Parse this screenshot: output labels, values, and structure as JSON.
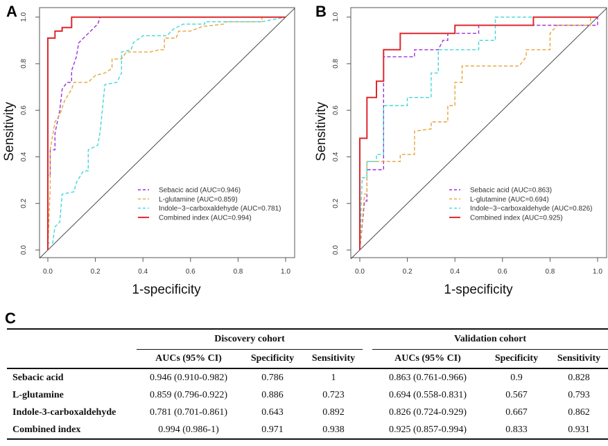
{
  "panels": [
    {
      "letter": "A",
      "xlabel": "1-specificity",
      "ylabel": "Sensitivity",
      "legend": [
        "Sebacic acid (AUC=0.946)",
        "L-glutamine (AUC=0.859)",
        "Indole−3−carboxaldehyde (AUC=0.781)",
        "Combined index (AUC=0.994)"
      ]
    },
    {
      "letter": "B",
      "xlabel": "1-specificity",
      "ylabel": "Sensitivity",
      "legend": [
        "Sebacic acid (AUC=0.863)",
        "L-glutamine (AUC=0.694)",
        "Indole−3−carboxaldehyde (AUC=0.826)",
        "Combined index (AUC=0.925)"
      ]
    }
  ],
  "chart_data": [
    {
      "type": "line",
      "panel": "A",
      "xlabel": "1-specificity",
      "ylabel": "Sensitivity",
      "xlim": [
        0,
        1
      ],
      "ylim": [
        0,
        1
      ],
      "xticks": [
        "0.0",
        "0.2",
        "0.4",
        "0.6",
        "0.8",
        "1.0"
      ],
      "yticks": [
        "0.0",
        "0.2",
        "0.4",
        "0.6",
        "0.8",
        "1.0"
      ],
      "legend_position": "bottom-right",
      "reference_line": "diagonal",
      "series": [
        {
          "name": "Sebacic acid (AUC=0.946)",
          "color": "#9b30d9",
          "dash": true,
          "points": [
            [
              0,
              0
            ],
            [
              0,
              0.32
            ],
            [
              0.01,
              0.32
            ],
            [
              0.01,
              0.43
            ],
            [
              0.03,
              0.43
            ],
            [
              0.03,
              0.5
            ],
            [
              0.04,
              0.55
            ],
            [
              0.05,
              0.6
            ],
            [
              0.06,
              0.69
            ],
            [
              0.08,
              0.72
            ],
            [
              0.1,
              0.72
            ],
            [
              0.1,
              0.77
            ],
            [
              0.12,
              0.83
            ],
            [
              0.13,
              0.89
            ],
            [
              0.16,
              0.92
            ],
            [
              0.19,
              0.95
            ],
            [
              0.21,
              0.97
            ],
            [
              0.22,
              1
            ],
            [
              1,
              1
            ]
          ]
        },
        {
          "name": "L-glutamine (AUC=0.859)",
          "color": "#e8a33a",
          "dash": true,
          "points": [
            [
              0,
              0
            ],
            [
              0.01,
              0.27
            ],
            [
              0.01,
              0.43
            ],
            [
              0.02,
              0.49
            ],
            [
              0.03,
              0.55
            ],
            [
              0.05,
              0.58
            ],
            [
              0.07,
              0.64
            ],
            [
              0.1,
              0.69
            ],
            [
              0.11,
              0.72
            ],
            [
              0.17,
              0.72
            ],
            [
              0.2,
              0.75
            ],
            [
              0.24,
              0.76
            ],
            [
              0.27,
              0.78
            ],
            [
              0.27,
              0.82
            ],
            [
              0.31,
              0.82
            ],
            [
              0.33,
              0.85
            ],
            [
              0.43,
              0.85
            ],
            [
              0.47,
              0.86
            ],
            [
              0.49,
              0.86
            ],
            [
              0.49,
              0.91
            ],
            [
              0.54,
              0.91
            ],
            [
              0.55,
              0.94
            ],
            [
              0.6,
              0.94
            ],
            [
              0.65,
              0.96
            ],
            [
              0.74,
              0.97
            ],
            [
              0.75,
              0.98
            ],
            [
              0.9,
              0.98
            ],
            [
              0.9,
              1
            ],
            [
              1,
              1
            ]
          ]
        },
        {
          "name": "Indole-3-carboxaldehyde (AUC=0.781)",
          "color": "#3fd8d8",
          "dash": true,
          "points": [
            [
              0,
              0
            ],
            [
              0,
              0.03
            ],
            [
              0.02,
              0.03
            ],
            [
              0.03,
              0.1
            ],
            [
              0.05,
              0.12
            ],
            [
              0.06,
              0.24
            ],
            [
              0.11,
              0.25
            ],
            [
              0.12,
              0.29
            ],
            [
              0.15,
              0.34
            ],
            [
              0.17,
              0.34
            ],
            [
              0.17,
              0.43
            ],
            [
              0.21,
              0.45
            ],
            [
              0.22,
              0.51
            ],
            [
              0.23,
              0.61
            ],
            [
              0.24,
              0.71
            ],
            [
              0.29,
              0.72
            ],
            [
              0.31,
              0.76
            ],
            [
              0.31,
              0.85
            ],
            [
              0.35,
              0.86
            ],
            [
              0.36,
              0.89
            ],
            [
              0.4,
              0.92
            ],
            [
              0.5,
              0.92
            ],
            [
              0.53,
              0.95
            ],
            [
              0.57,
              0.97
            ],
            [
              0.66,
              0.97
            ],
            [
              0.66,
              0.98
            ],
            [
              0.9,
              0.98
            ],
            [
              1,
              1
            ]
          ]
        },
        {
          "name": "Combined index (AUC=0.994)",
          "color": "#e0262c",
          "dash": false,
          "points": [
            [
              0,
              0
            ],
            [
              0,
              0.91
            ],
            [
              0.03,
              0.91
            ],
            [
              0.03,
              0.94
            ],
            [
              0.06,
              0.94
            ],
            [
              0.06,
              0.955
            ],
            [
              0.1,
              0.955
            ],
            [
              0.1,
              1
            ],
            [
              1,
              1
            ]
          ]
        }
      ]
    },
    {
      "type": "line",
      "panel": "B",
      "xlabel": "1-specificity",
      "ylabel": "Sensitivity",
      "xlim": [
        0,
        1
      ],
      "ylim": [
        0,
        1
      ],
      "xticks": [
        "0.0",
        "0.2",
        "0.4",
        "0.6",
        "0.8",
        "1.0"
      ],
      "yticks": [
        "0.0",
        "0.2",
        "0.4",
        "0.6",
        "0.8",
        "1.0"
      ],
      "legend_position": "bottom-right",
      "reference_line": "diagonal",
      "series": [
        {
          "name": "Sebacic acid (AUC=0.863)",
          "color": "#9b30d9",
          "dash": true,
          "points": [
            [
              0,
              0
            ],
            [
              0.02,
              0.21
            ],
            [
              0.03,
              0.21
            ],
            [
              0.03,
              0.345
            ],
            [
              0.1,
              0.345
            ],
            [
              0.1,
              0.83
            ],
            [
              0.23,
              0.83
            ],
            [
              0.23,
              0.86
            ],
            [
              0.33,
              0.86
            ],
            [
              0.35,
              0.9
            ],
            [
              0.37,
              0.9
            ],
            [
              0.37,
              0.93
            ],
            [
              0.5,
              0.93
            ],
            [
              0.5,
              0.965
            ],
            [
              1,
              0.965
            ],
            [
              1,
              1
            ]
          ]
        },
        {
          "name": "L-glutamine (AUC=0.694)",
          "color": "#e8a33a",
          "dash": true,
          "points": [
            [
              0,
              0
            ],
            [
              0.02,
              0.24
            ],
            [
              0.03,
              0.24
            ],
            [
              0.03,
              0.38
            ],
            [
              0.17,
              0.38
            ],
            [
              0.17,
              0.41
            ],
            [
              0.23,
              0.41
            ],
            [
              0.23,
              0.51
            ],
            [
              0.3,
              0.52
            ],
            [
              0.3,
              0.55
            ],
            [
              0.37,
              0.55
            ],
            [
              0.37,
              0.62
            ],
            [
              0.4,
              0.62
            ],
            [
              0.4,
              0.72
            ],
            [
              0.43,
              0.72
            ],
            [
              0.43,
              0.79
            ],
            [
              0.67,
              0.79
            ],
            [
              0.7,
              0.83
            ],
            [
              0.7,
              0.86
            ],
            [
              0.8,
              0.86
            ],
            [
              0.8,
              0.93
            ],
            [
              0.83,
              0.965
            ],
            [
              0.97,
              0.965
            ],
            [
              0.97,
              1
            ],
            [
              1,
              1
            ]
          ]
        },
        {
          "name": "Indole-3-carboxaldehyde (AUC=0.826)",
          "color": "#3fd8d8",
          "dash": true,
          "points": [
            [
              0,
              0
            ],
            [
              0.01,
              0.31
            ],
            [
              0.03,
              0.31
            ],
            [
              0.03,
              0.38
            ],
            [
              0.07,
              0.38
            ],
            [
              0.07,
              0.41
            ],
            [
              0.1,
              0.41
            ],
            [
              0.1,
              0.62
            ],
            [
              0.2,
              0.62
            ],
            [
              0.2,
              0.655
            ],
            [
              0.3,
              0.655
            ],
            [
              0.3,
              0.76
            ],
            [
              0.33,
              0.76
            ],
            [
              0.33,
              0.86
            ],
            [
              0.5,
              0.86
            ],
            [
              0.5,
              0.9
            ],
            [
              0.57,
              0.9
            ],
            [
              0.57,
              1
            ],
            [
              1,
              1
            ]
          ]
        },
        {
          "name": "Combined index (AUC=0.925)",
          "color": "#e0262c",
          "dash": false,
          "points": [
            [
              0,
              0
            ],
            [
              0,
              0.48
            ],
            [
              0.03,
              0.48
            ],
            [
              0.03,
              0.655
            ],
            [
              0.07,
              0.655
            ],
            [
              0.07,
              0.725
            ],
            [
              0.1,
              0.725
            ],
            [
              0.1,
              0.86
            ],
            [
              0.17,
              0.86
            ],
            [
              0.17,
              0.93
            ],
            [
              0.4,
              0.93
            ],
            [
              0.4,
              0.965
            ],
            [
              0.73,
              0.965
            ],
            [
              0.73,
              1
            ],
            [
              1,
              1
            ]
          ]
        }
      ]
    }
  ],
  "table": {
    "letter": "C",
    "groups": [
      "Discovery cohort",
      "Validation cohort"
    ],
    "columns": [
      "AUCs (95% CI)",
      "Specificity",
      "Sensitivity",
      "AUCs (95% CI)",
      "Specificity",
      "Sensitivity"
    ],
    "rows": [
      {
        "label": "Sebacic acid",
        "cells": [
          "0.946 (0.910-0.982)",
          "0.786",
          "1",
          "0.863 (0.761-0.966)",
          "0.9",
          "0.828"
        ]
      },
      {
        "label": "L-glutamine",
        "cells": [
          "0.859 (0.796-0.922)",
          "0.886",
          "0.723",
          "0.694 (0.558-0.831)",
          "0.567",
          "0.793"
        ]
      },
      {
        "label": "Indole-3-carboxaldehyde",
        "cells": [
          "0.781 (0.701-0.861)",
          "0.643",
          "0.892",
          "0.826 (0.724-0.929)",
          "0.667",
          "0.862"
        ]
      },
      {
        "label": "Combined index",
        "cells": [
          "0.994 (0.986-1)",
          "0.971",
          "0.938",
          "0.925 (0.857-0.994)",
          "0.833",
          "0.931"
        ]
      }
    ]
  }
}
